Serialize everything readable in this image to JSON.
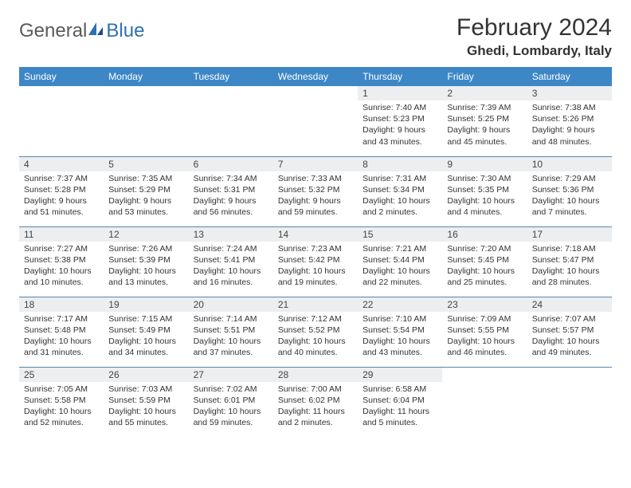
{
  "logo": {
    "general": "General",
    "blue": "Blue"
  },
  "title": "February 2024",
  "location": "Ghedi, Lombardy, Italy",
  "colors": {
    "header_bg": "#3d87c7",
    "header_text": "#ffffff",
    "row_border": "#5586ad",
    "daynum_bg": "#eceef0",
    "text": "#333333",
    "logo_gray": "#5a5a5a",
    "logo_blue": "#2f6fb0",
    "background": "#ffffff"
  },
  "fonts": {
    "title_size_pt": 30,
    "location_size_pt": 17,
    "header_size_pt": 12,
    "daynum_size_pt": 12,
    "body_size_pt": 10.5
  },
  "weekdays": [
    "Sunday",
    "Monday",
    "Tuesday",
    "Wednesday",
    "Thursday",
    "Friday",
    "Saturday"
  ],
  "weeks": [
    [
      null,
      null,
      null,
      null,
      {
        "n": "1",
        "sr": "Sunrise: 7:40 AM",
        "ss": "Sunset: 5:23 PM",
        "d1": "Daylight: 9 hours",
        "d2": "and 43 minutes."
      },
      {
        "n": "2",
        "sr": "Sunrise: 7:39 AM",
        "ss": "Sunset: 5:25 PM",
        "d1": "Daylight: 9 hours",
        "d2": "and 45 minutes."
      },
      {
        "n": "3",
        "sr": "Sunrise: 7:38 AM",
        "ss": "Sunset: 5:26 PM",
        "d1": "Daylight: 9 hours",
        "d2": "and 48 minutes."
      }
    ],
    [
      {
        "n": "4",
        "sr": "Sunrise: 7:37 AM",
        "ss": "Sunset: 5:28 PM",
        "d1": "Daylight: 9 hours",
        "d2": "and 51 minutes."
      },
      {
        "n": "5",
        "sr": "Sunrise: 7:35 AM",
        "ss": "Sunset: 5:29 PM",
        "d1": "Daylight: 9 hours",
        "d2": "and 53 minutes."
      },
      {
        "n": "6",
        "sr": "Sunrise: 7:34 AM",
        "ss": "Sunset: 5:31 PM",
        "d1": "Daylight: 9 hours",
        "d2": "and 56 minutes."
      },
      {
        "n": "7",
        "sr": "Sunrise: 7:33 AM",
        "ss": "Sunset: 5:32 PM",
        "d1": "Daylight: 9 hours",
        "d2": "and 59 minutes."
      },
      {
        "n": "8",
        "sr": "Sunrise: 7:31 AM",
        "ss": "Sunset: 5:34 PM",
        "d1": "Daylight: 10 hours",
        "d2": "and 2 minutes."
      },
      {
        "n": "9",
        "sr": "Sunrise: 7:30 AM",
        "ss": "Sunset: 5:35 PM",
        "d1": "Daylight: 10 hours",
        "d2": "and 4 minutes."
      },
      {
        "n": "10",
        "sr": "Sunrise: 7:29 AM",
        "ss": "Sunset: 5:36 PM",
        "d1": "Daylight: 10 hours",
        "d2": "and 7 minutes."
      }
    ],
    [
      {
        "n": "11",
        "sr": "Sunrise: 7:27 AM",
        "ss": "Sunset: 5:38 PM",
        "d1": "Daylight: 10 hours",
        "d2": "and 10 minutes."
      },
      {
        "n": "12",
        "sr": "Sunrise: 7:26 AM",
        "ss": "Sunset: 5:39 PM",
        "d1": "Daylight: 10 hours",
        "d2": "and 13 minutes."
      },
      {
        "n": "13",
        "sr": "Sunrise: 7:24 AM",
        "ss": "Sunset: 5:41 PM",
        "d1": "Daylight: 10 hours",
        "d2": "and 16 minutes."
      },
      {
        "n": "14",
        "sr": "Sunrise: 7:23 AM",
        "ss": "Sunset: 5:42 PM",
        "d1": "Daylight: 10 hours",
        "d2": "and 19 minutes."
      },
      {
        "n": "15",
        "sr": "Sunrise: 7:21 AM",
        "ss": "Sunset: 5:44 PM",
        "d1": "Daylight: 10 hours",
        "d2": "and 22 minutes."
      },
      {
        "n": "16",
        "sr": "Sunrise: 7:20 AM",
        "ss": "Sunset: 5:45 PM",
        "d1": "Daylight: 10 hours",
        "d2": "and 25 minutes."
      },
      {
        "n": "17",
        "sr": "Sunrise: 7:18 AM",
        "ss": "Sunset: 5:47 PM",
        "d1": "Daylight: 10 hours",
        "d2": "and 28 minutes."
      }
    ],
    [
      {
        "n": "18",
        "sr": "Sunrise: 7:17 AM",
        "ss": "Sunset: 5:48 PM",
        "d1": "Daylight: 10 hours",
        "d2": "and 31 minutes."
      },
      {
        "n": "19",
        "sr": "Sunrise: 7:15 AM",
        "ss": "Sunset: 5:49 PM",
        "d1": "Daylight: 10 hours",
        "d2": "and 34 minutes."
      },
      {
        "n": "20",
        "sr": "Sunrise: 7:14 AM",
        "ss": "Sunset: 5:51 PM",
        "d1": "Daylight: 10 hours",
        "d2": "and 37 minutes."
      },
      {
        "n": "21",
        "sr": "Sunrise: 7:12 AM",
        "ss": "Sunset: 5:52 PM",
        "d1": "Daylight: 10 hours",
        "d2": "and 40 minutes."
      },
      {
        "n": "22",
        "sr": "Sunrise: 7:10 AM",
        "ss": "Sunset: 5:54 PM",
        "d1": "Daylight: 10 hours",
        "d2": "and 43 minutes."
      },
      {
        "n": "23",
        "sr": "Sunrise: 7:09 AM",
        "ss": "Sunset: 5:55 PM",
        "d1": "Daylight: 10 hours",
        "d2": "and 46 minutes."
      },
      {
        "n": "24",
        "sr": "Sunrise: 7:07 AM",
        "ss": "Sunset: 5:57 PM",
        "d1": "Daylight: 10 hours",
        "d2": "and 49 minutes."
      }
    ],
    [
      {
        "n": "25",
        "sr": "Sunrise: 7:05 AM",
        "ss": "Sunset: 5:58 PM",
        "d1": "Daylight: 10 hours",
        "d2": "and 52 minutes."
      },
      {
        "n": "26",
        "sr": "Sunrise: 7:03 AM",
        "ss": "Sunset: 5:59 PM",
        "d1": "Daylight: 10 hours",
        "d2": "and 55 minutes."
      },
      {
        "n": "27",
        "sr": "Sunrise: 7:02 AM",
        "ss": "Sunset: 6:01 PM",
        "d1": "Daylight: 10 hours",
        "d2": "and 59 minutes."
      },
      {
        "n": "28",
        "sr": "Sunrise: 7:00 AM",
        "ss": "Sunset: 6:02 PM",
        "d1": "Daylight: 11 hours",
        "d2": "and 2 minutes."
      },
      {
        "n": "29",
        "sr": "Sunrise: 6:58 AM",
        "ss": "Sunset: 6:04 PM",
        "d1": "Daylight: 11 hours",
        "d2": "and 5 minutes."
      },
      null,
      null
    ]
  ]
}
